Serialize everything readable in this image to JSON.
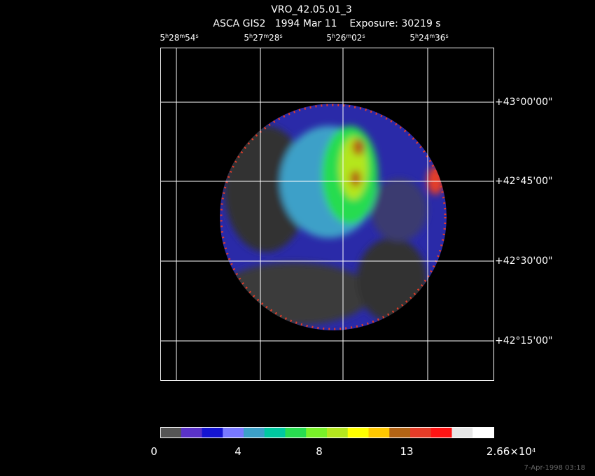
{
  "title": "VRO_42.05.01_3",
  "subtitle": "ASCA GIS2   1994 Mar 11    Exposure: 30219 s",
  "ra_labels": [
    [
      "5",
      "h",
      "28",
      "m",
      "54",
      "s"
    ],
    [
      "5",
      "h",
      "27",
      "m",
      "28",
      "s"
    ],
    [
      "5",
      "h",
      "26",
      "m",
      "02",
      "s"
    ],
    [
      "5",
      "h",
      "24",
      "m",
      "36",
      "s"
    ]
  ],
  "dec_labels": [
    "+43°00'00\"",
    "+42°45'00\"",
    "+42°30'00\"",
    "+42°15'00\""
  ],
  "colorbar": {
    "colors": [
      "#555555",
      "#5a32c8",
      "#1414d2",
      "#7878ff",
      "#3ca0c8",
      "#00c8a0",
      "#28dc50",
      "#78f028",
      "#b4e61e",
      "#ffff00",
      "#ffc800",
      "#b46414",
      "#e63c28",
      "#ff1414",
      "#e6e6e6",
      "#ffffff"
    ],
    "labels": [
      [
        "0"
      ],
      [
        "4"
      ],
      [
        "8"
      ],
      [
        "13"
      ],
      [
        "2.66×10",
        "4"
      ]
    ]
  },
  "timestamp": "7-Apr-1998 03:18"
}
